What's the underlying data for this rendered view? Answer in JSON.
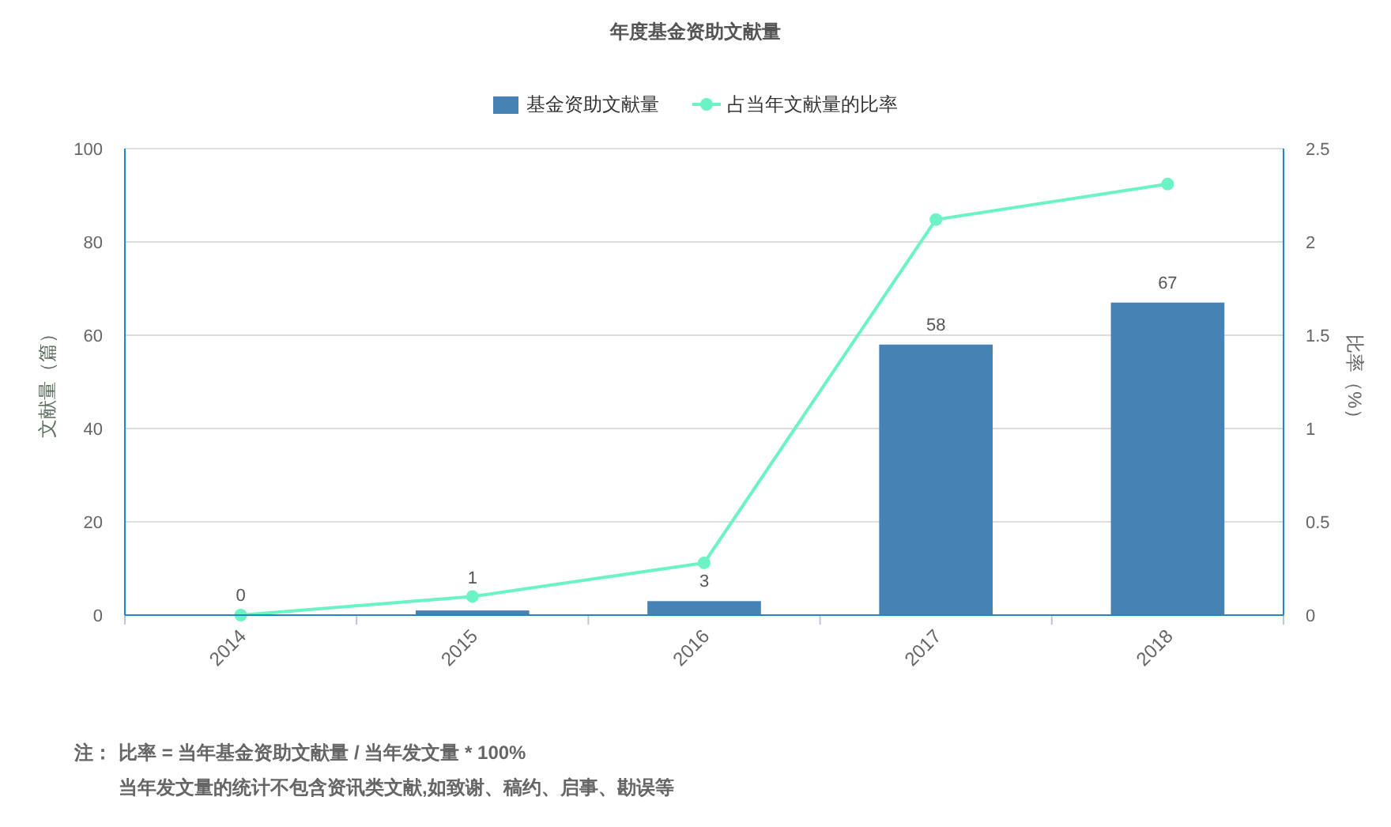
{
  "chart_data": {
    "type": "bar",
    "title": "年度基金资助文献量",
    "categories": [
      "2014",
      "2015",
      "2016",
      "2017",
      "2018"
    ],
    "series": [
      {
        "name": "基金资助文献量",
        "color": "#4682b4",
        "values": [
          0,
          1,
          3,
          58,
          67
        ],
        "value_labels": [
          "0",
          "1",
          "3",
          "58",
          "67"
        ]
      },
      {
        "name": "占当年文献量的比率",
        "type": "line",
        "axis": "y2",
        "color": "#6cf3c5",
        "values": [
          0,
          0.1,
          0.28,
          2.12,
          2.31
        ]
      }
    ],
    "ylabel": "文献量（篇）",
    "y2label": "比率（%）",
    "ylim": [
      0,
      100
    ],
    "yticks": [
      0,
      20,
      40,
      60,
      80,
      100
    ],
    "y2lim": [
      0,
      2.5
    ],
    "y2ticks": [
      0,
      0.5,
      1,
      1.5,
      2,
      2.5
    ],
    "grid": "y",
    "legend": "top",
    "marker": "circle",
    "annotations": [
      "注：",
      "比率 = 当年基金资助文献量 / 当年发文量 * 100%",
      "当年发文量的统计不包含资讯类文献,如致谢、稿约、启事、勘误等"
    ]
  }
}
